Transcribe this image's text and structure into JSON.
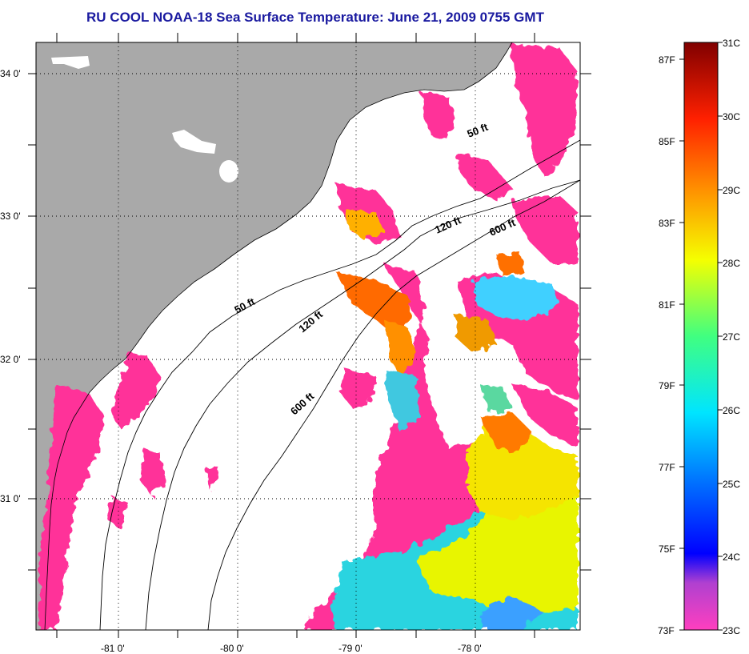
{
  "title": "RU COOL  NOAA-18  Sea Surface Temperature:  June 21, 2009 0755 GMT",
  "colors": {
    "land": "#a9a9a9",
    "cloud": "#ffffff",
    "sst_cool": "#ff3399",
    "sst_warm": "#ff6a00",
    "sst_yellow": "#f5f500",
    "sst_cyan": "#29d6e0"
  },
  "map": {
    "lon_ticks": [
      {
        "label": "-81 0'"
      },
      {
        "label": "-80 0'"
      },
      {
        "label": "-79 0'"
      },
      {
        "label": "-78 0'"
      }
    ],
    "lat_ticks": [
      {
        "label": "34 0'"
      },
      {
        "label": "33 0'"
      },
      {
        "label": "32 0'"
      },
      {
        "label": "31 0'"
      }
    ],
    "depth_contours": [
      {
        "label": "50 ft"
      },
      {
        "label": "50 ft"
      },
      {
        "label": "120 ft"
      },
      {
        "label": "120 ft"
      },
      {
        "label": "600 ft"
      },
      {
        "label": "600 ft"
      }
    ]
  },
  "colorbar": {
    "celsius": [
      "31C",
      "30C",
      "29C",
      "28C",
      "27C",
      "26C",
      "25C",
      "24C",
      "23C"
    ],
    "fahrenheit": [
      "87F",
      "85F",
      "83F",
      "81F",
      "79F",
      "77F",
      "75F",
      "73F"
    ]
  }
}
